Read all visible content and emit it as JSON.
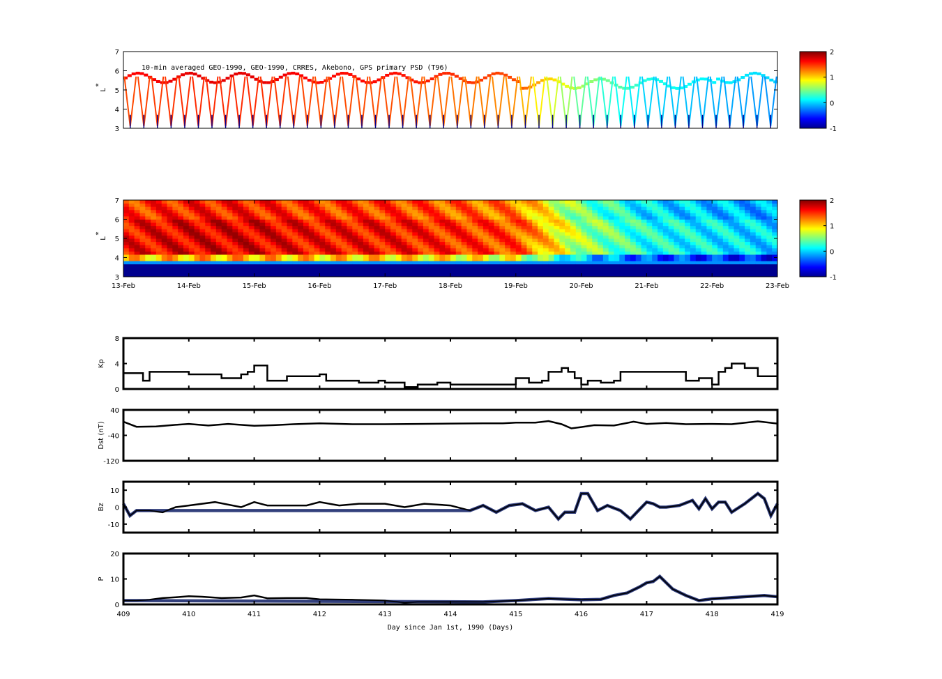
{
  "figure": {
    "title_annotation": "10-min averaged GEO-1990, GEO-1990, CRRES, Akebono, GPS  primary PSD (T96)"
  },
  "chart_data": [
    {
      "id": "psd-observed",
      "type": "heatmap",
      "ylabel": "L*",
      "ylim": [
        3,
        7
      ],
      "yticks": [
        3,
        4,
        5,
        6,
        7
      ],
      "xlim": [
        409,
        419
      ],
      "colorbar": {
        "ticks": [
          -1,
          0,
          1,
          2
        ],
        "range": [
          -1,
          2
        ]
      },
      "annotation": "10-min averaged GEO-1990, GEO-1990, CRRES, Akebono, GPS  primary PSD (T96)"
    },
    {
      "id": "psd-assimilated",
      "type": "heatmap",
      "ylabel": "L*",
      "ylim": [
        3,
        7
      ],
      "yticks": [
        3,
        4,
        5,
        6,
        7
      ],
      "xlim": [
        409,
        419
      ],
      "xtick_labels": [
        "13-Feb",
        "14-Feb",
        "15-Feb",
        "16-Feb",
        "17-Feb",
        "18-Feb",
        "19-Feb",
        "20-Feb",
        "21-Feb",
        "22-Feb",
        "23-Feb"
      ],
      "colorbar": {
        "ticks": [
          -1,
          0,
          1,
          2
        ],
        "range": [
          -1,
          2
        ]
      },
      "color_trend_by_day": [
        1.6,
        1.7,
        1.7,
        1.6,
        1.6,
        1.5,
        1.4,
        0.6,
        0.2,
        0.1,
        0.0
      ]
    },
    {
      "id": "kp",
      "type": "line",
      "ylabel": "Kp",
      "ylim": [
        0,
        8
      ],
      "yticks": [
        0,
        4,
        8
      ],
      "xlim": [
        409,
        419
      ],
      "x": [
        409,
        409.2,
        409.3,
        409.4,
        409.8,
        410.0,
        410.3,
        410.5,
        410.8,
        410.9,
        411.0,
        411.1,
        411.2,
        411.5,
        411.8,
        412.0,
        412.1,
        412.3,
        412.6,
        412.9,
        413.0,
        413.2,
        413.3,
        413.5,
        413.8,
        414.0,
        414.3,
        414.5,
        414.8,
        415.0,
        415.2,
        415.4,
        415.5,
        415.6,
        415.7,
        415.8,
        415.9,
        416.0,
        416.1,
        416.3,
        416.5,
        416.6,
        416.8,
        417.0,
        417.3,
        417.6,
        417.8,
        418.0,
        418.1,
        418.2,
        418.3,
        418.5,
        418.7,
        418.9,
        419.0
      ],
      "y": [
        2.5,
        2.5,
        1.3,
        2.7,
        2.7,
        2.3,
        2.3,
        1.7,
        2.3,
        2.7,
        3.7,
        3.7,
        1.3,
        2.0,
        2.0,
        2.3,
        1.3,
        1.3,
        1.0,
        1.3,
        1.0,
        1.0,
        0.3,
        0.7,
        1.0,
        0.7,
        0.7,
        0.7,
        0.7,
        1.7,
        1.0,
        1.3,
        2.7,
        2.7,
        3.3,
        2.7,
        1.7,
        0.7,
        1.3,
        1.0,
        1.3,
        2.7,
        2.7,
        2.7,
        2.7,
        1.3,
        1.7,
        0.7,
        2.7,
        3.3,
        4.0,
        3.3,
        2.0,
        2.0,
        4.0
      ]
    },
    {
      "id": "dst",
      "type": "line",
      "ylabel": "Dst (nT)",
      "ylim": [
        -120,
        40
      ],
      "yticks": [
        -120,
        -40,
        40
      ],
      "xlim": [
        409,
        419
      ],
      "x": [
        409,
        409.2,
        409.5,
        409.8,
        410.0,
        410.3,
        410.6,
        411.0,
        411.3,
        411.6,
        412.0,
        412.5,
        413.0,
        413.5,
        414.0,
        414.5,
        414.8,
        415.0,
        415.3,
        415.5,
        415.7,
        415.85,
        416.0,
        416.2,
        416.5,
        416.8,
        417.0,
        417.3,
        417.6,
        418.0,
        418.3,
        418.7,
        419.0
      ],
      "y": [
        3,
        -13,
        -12,
        -7,
        -4,
        -9,
        -4,
        -10,
        -8,
        -5,
        -2,
        -5,
        -5,
        -4,
        -3,
        -2,
        -2,
        0,
        0,
        5,
        -5,
        -18,
        -14,
        -8,
        -9,
        3,
        -4,
        -1,
        -5,
        -4,
        -5,
        4,
        -3
      ]
    },
    {
      "id": "bz",
      "type": "line",
      "ylabel": "Bz",
      "ylim": [
        -15,
        15
      ],
      "yticks": [
        -10,
        0,
        10
      ],
      "xlim": [
        409,
        419
      ],
      "x": [
        409,
        409.1,
        409.2,
        409.4,
        409.6,
        409.8,
        410.0,
        410.4,
        410.8,
        411.0,
        411.2,
        411.5,
        411.8,
        412.0,
        412.3,
        412.6,
        413.0,
        413.3,
        413.6,
        414.0,
        414.3,
        414.5,
        414.7,
        414.9,
        415.1,
        415.3,
        415.5,
        415.65,
        415.75,
        415.9,
        416.0,
        416.1,
        416.25,
        416.4,
        416.6,
        416.75,
        416.9,
        417.0,
        417.1,
        417.2,
        417.3,
        417.5,
        417.7,
        417.8,
        417.9,
        418.0,
        418.1,
        418.2,
        418.3,
        418.5,
        418.6,
        418.7,
        418.8,
        418.9,
        419.0
      ],
      "y": [
        2,
        -5,
        -2,
        -2,
        -3,
        0,
        1,
        3,
        0,
        3,
        1,
        1,
        1,
        3,
        1,
        2,
        2,
        0,
        2,
        1,
        -2,
        1,
        -3,
        1,
        2,
        -2,
        0,
        -7,
        -3,
        -3,
        8,
        8,
        -2,
        1,
        -2,
        -7,
        -1,
        3,
        2,
        0,
        0,
        1,
        4,
        -1,
        5,
        -1,
        3,
        3,
        -3,
        2,
        5,
        8,
        5,
        -5,
        2
      ]
    },
    {
      "id": "p",
      "type": "line",
      "ylabel": "P",
      "xlabel": "Day since Jan 1st, 1990 (Days)",
      "ylim": [
        0,
        20
      ],
      "yticks": [
        0,
        10,
        20
      ],
      "xlim": [
        409,
        419
      ],
      "xtick_labels": [
        "409",
        "410",
        "411",
        "412",
        "413",
        "414",
        "415",
        "416",
        "417",
        "418",
        "419"
      ],
      "x": [
        409,
        409.2,
        409.4,
        409.6,
        409.8,
        410.0,
        410.2,
        410.5,
        410.8,
        411.0,
        411.2,
        411.5,
        411.8,
        412.0,
        412.5,
        413.0,
        413.3,
        413.5,
        414.0,
        414.5,
        415.0,
        415.5,
        416.0,
        416.3,
        416.5,
        416.7,
        416.9,
        417.0,
        417.1,
        417.2,
        417.4,
        417.6,
        417.8,
        418.0,
        418.2,
        418.5,
        418.8,
        419.0
      ],
      "y": [
        1.5,
        1.5,
        1.8,
        2.5,
        2.8,
        3.2,
        3.0,
        2.5,
        2.7,
        3.5,
        2.4,
        2.5,
        2.5,
        2.0,
        1.8,
        1.5,
        0.7,
        1.0,
        1.0,
        1.0,
        1.5,
        2.3,
        1.8,
        2.0,
        3.5,
        4.5,
        7.0,
        8.5,
        9.0,
        11.0,
        6.0,
        3.5,
        1.5,
        2.2,
        2.5,
        3.0,
        3.5,
        3.0
      ]
    }
  ]
}
